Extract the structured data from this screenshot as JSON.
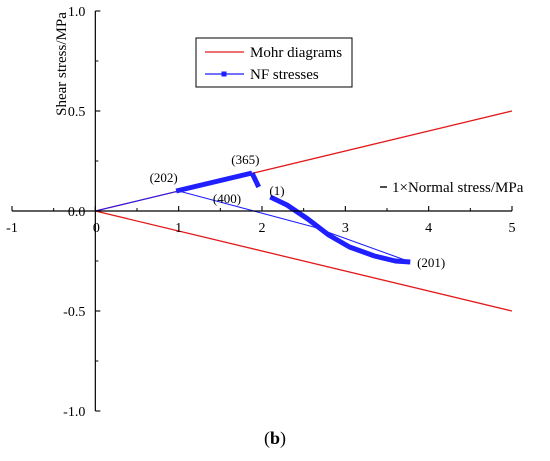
{
  "caption": {
    "open": "(",
    "letter": "b",
    "close": ")"
  },
  "chart_data": {
    "type": "line",
    "xlabel": "1×Normal stress/MPa",
    "ylabel": "Shear stress/MPa",
    "xlim": [
      -1,
      5
    ],
    "ylim": [
      -1.0,
      1.0
    ],
    "x_ticks": [
      -1,
      0,
      1,
      2,
      3,
      4,
      5
    ],
    "x_tick_labels": [
      "-1",
      "0",
      "1",
      "2",
      "3",
      "4",
      "5"
    ],
    "y_ticks": [
      1.0,
      0.5,
      0.0,
      -0.5,
      -1.0
    ],
    "y_tick_labels": [
      "1.0",
      "0.5",
      "0.0",
      "-0.5",
      "-1.0"
    ],
    "grid": false,
    "legend_position": "top-center",
    "series": [
      {
        "name": "Mohr diagrams",
        "color": "#e31a1c",
        "marker": "none",
        "segments": [
          [
            [
              0,
              0
            ],
            [
              5,
              0.5
            ]
          ],
          [
            [
              0,
              0
            ],
            [
              5,
              -0.5
            ]
          ]
        ]
      },
      {
        "name": "NF stresses",
        "color": "#1f1fff",
        "marker": "square",
        "thin_segments": [
          [
            [
              0,
              0
            ],
            [
              1.0,
              0.1
            ]
          ],
          [
            [
              1.0,
              0.1
            ],
            [
              2.62,
              -0.08
            ]
          ],
          [
            [
              2.62,
              -0.08
            ],
            [
              3.75,
              -0.25
            ]
          ]
        ],
        "thick_segments": [
          [
            [
              0.97,
              0.1
            ],
            [
              1.88,
              0.19
            ]
          ],
          [
            [
              1.88,
              0.19
            ],
            [
              1.96,
              0.12
            ]
          ],
          [
            [
              2.1,
              0.07
            ],
            [
              2.3,
              0.03
            ],
            [
              2.55,
              -0.04
            ],
            [
              2.8,
              -0.12
            ],
            [
              3.05,
              -0.18
            ],
            [
              3.35,
              -0.225
            ],
            [
              3.6,
              -0.25
            ],
            [
              3.78,
              -0.255
            ]
          ]
        ]
      }
    ],
    "annotations": [
      {
        "text": "(202)",
        "x": 0.82,
        "y": 0.165
      },
      {
        "text": "(365)",
        "x": 1.8,
        "y": 0.255
      },
      {
        "text": "(400)",
        "x": 1.58,
        "y": 0.06
      },
      {
        "text": "(1)",
        "x": 2.18,
        "y": 0.1
      },
      {
        "text": "(201)",
        "x": 4.03,
        "y": -0.26
      }
    ]
  }
}
